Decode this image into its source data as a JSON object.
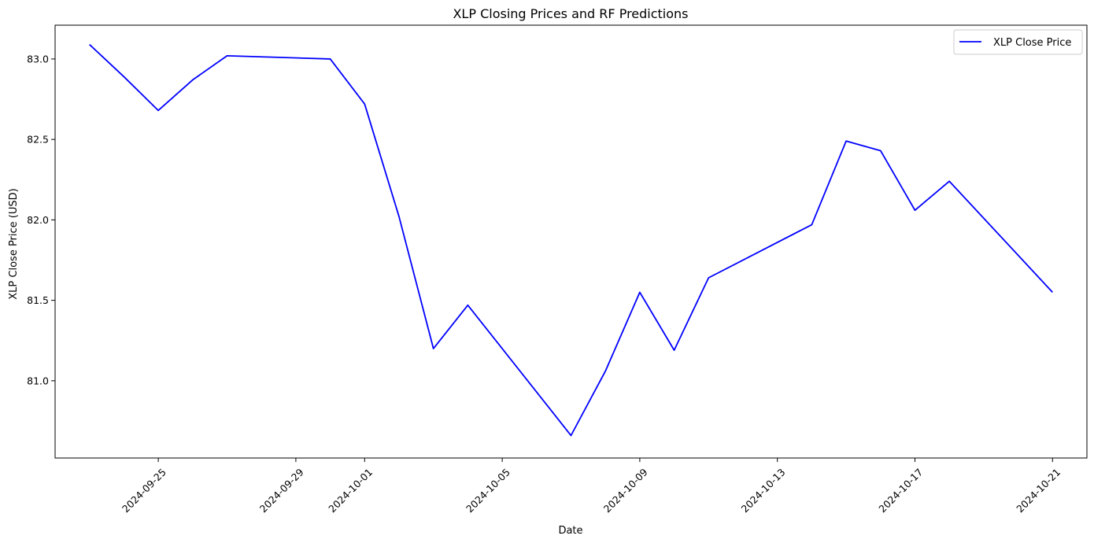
{
  "chart_data": {
    "type": "line",
    "title": "XLP Closing Prices and RF Predictions",
    "xlabel": "Date",
    "ylabel": "XLP Close Price (USD)",
    "x_ticks": [
      "2024-09-25",
      "2024-09-29",
      "2024-10-01",
      "2024-10-05",
      "2024-10-09",
      "2024-10-13",
      "2024-10-17",
      "2024-10-21"
    ],
    "y_ticks": [
      "81.0",
      "81.5",
      "82.0",
      "82.5",
      "83.0"
    ],
    "xlim": [
      "2024-09-22",
      "2024-10-22"
    ],
    "ylim": [
      80.52,
      83.21
    ],
    "grid": false,
    "legend_position": "top-right",
    "series": [
      {
        "name": "XLP Close Price",
        "color": "#0000ff",
        "x": [
          "2024-09-23",
          "2024-09-24",
          "2024-09-25",
          "2024-09-26",
          "2024-09-27",
          "2024-09-30",
          "2024-10-01",
          "2024-10-02",
          "2024-10-03",
          "2024-10-04",
          "2024-10-07",
          "2024-10-08",
          "2024-10-09",
          "2024-10-10",
          "2024-10-11",
          "2024-10-14",
          "2024-10-15",
          "2024-10-16",
          "2024-10-17",
          "2024-10-18",
          "2024-10-21"
        ],
        "y": [
          83.09,
          82.89,
          82.68,
          82.87,
          83.02,
          83.0,
          82.72,
          82.02,
          81.2,
          81.47,
          80.66,
          81.06,
          81.55,
          81.19,
          81.64,
          81.97,
          82.49,
          82.43,
          82.06,
          82.24,
          81.55
        ]
      }
    ]
  }
}
